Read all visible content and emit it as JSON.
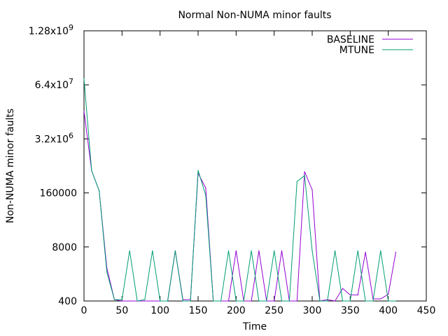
{
  "chart_data": {
    "type": "line",
    "title": "Normal Non-NUMA minor faults",
    "xlabel": "Time",
    "ylabel": "Non-NUMA minor faults",
    "xlim": [
      0,
      450
    ],
    "ylim": [
      400,
      1280000000
    ],
    "yscale": "log",
    "xticks": [
      0,
      50,
      100,
      150,
      200,
      250,
      300,
      350,
      400,
      450
    ],
    "yticks": [
      {
        "value": 400,
        "label": "400"
      },
      {
        "value": 8000,
        "label": "8000"
      },
      {
        "value": 160000,
        "label": "160000"
      },
      {
        "value": 3200000,
        "label": "3.2x10",
        "exp": "6"
      },
      {
        "value": 64000000,
        "label": "6.4x10",
        "exp": "7"
      },
      {
        "value": 1280000000,
        "label": "1.28x10",
        "exp": "9"
      }
    ],
    "grid": false,
    "legend": "top-right",
    "series": [
      {
        "name": "BASELINE",
        "color": "#9400d3",
        "x": [
          0,
          10,
          20,
          30,
          40,
          50,
          60,
          70,
          80,
          90,
          100,
          110,
          120,
          130,
          140,
          150,
          160,
          170,
          180,
          190,
          200,
          210,
          220,
          230,
          240,
          250,
          260,
          270,
          280,
          290,
          300,
          310,
          320,
          330,
          340,
          350,
          360,
          370,
          380,
          390,
          400,
          410
        ],
        "y": [
          15000000,
          550000,
          180000,
          2500,
          430,
          400,
          400,
          400,
          400,
          400,
          400,
          400,
          6500,
          430,
          430,
          480000,
          210000,
          400,
          400,
          400,
          6500,
          400,
          400,
          6500,
          400,
          400,
          6500,
          400,
          400,
          520000,
          190000,
          400,
          430,
          400,
          800,
          560,
          560,
          6000,
          450,
          450,
          580,
          6000
        ]
      },
      {
        "name": "MTUNE",
        "color": "#009e73",
        "x": [
          0,
          10,
          20,
          30,
          40,
          50,
          60,
          70,
          80,
          90,
          100,
          110,
          120,
          130,
          140,
          150,
          160,
          170,
          180,
          190,
          200,
          210,
          220,
          230,
          240,
          250,
          260,
          270,
          280,
          290,
          300,
          310,
          320,
          330,
          340,
          350,
          360,
          370,
          380,
          390,
          400,
          410
        ],
        "y": [
          90000000,
          550000,
          180000,
          2000,
          430,
          430,
          6500,
          400,
          430,
          6500,
          400,
          400,
          6500,
          400,
          400,
          560000,
          140000,
          400,
          400,
          6500,
          400,
          400,
          6500,
          400,
          400,
          6500,
          400,
          400,
          300000,
          420000,
          6500,
          400,
          400,
          6500,
          400,
          400,
          6500,
          400,
          400,
          6500,
          400,
          400
        ]
      }
    ]
  }
}
